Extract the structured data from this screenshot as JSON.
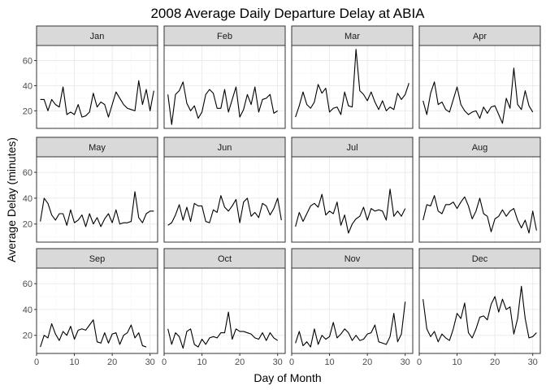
{
  "chart_data": {
    "type": "line",
    "title": "2008 Average Daily Departure Delay at ABIA",
    "xlabel": "Day of Month",
    "ylabel": "Average Delay (minutes)",
    "xlim": [
      0,
      32
    ],
    "ylim": [
      6,
      72
    ],
    "xticks": [
      0,
      10,
      20,
      30
    ],
    "yticks": [
      20,
      40,
      60
    ],
    "grid": true,
    "line_color": "#000000",
    "panel_border_color": "#333333",
    "strip_fill": "#d9d9d9",
    "grid_major_color": "#ebebeb",
    "grid_minor_color": "#f5f5f5",
    "facets": [
      {
        "label": "Jan",
        "y": [
          29,
          29,
          20,
          29,
          25,
          23,
          39,
          17,
          19,
          17,
          25,
          15,
          16,
          19,
          34,
          23,
          27,
          25,
          15,
          25,
          35,
          30,
          25,
          22,
          21,
          20,
          44,
          25,
          37,
          20,
          36
        ]
      },
      {
        "label": "Feb",
        "y": [
          33,
          9,
          33,
          36,
          43,
          26,
          20,
          24,
          14,
          19,
          33,
          37,
          34,
          22,
          22,
          37,
          19,
          29,
          39,
          15,
          21,
          33,
          25,
          39,
          19,
          29,
          30,
          33,
          18,
          20
        ]
      },
      {
        "label": "Mar",
        "y": [
          15,
          24,
          35,
          25,
          22,
          27,
          41,
          34,
          38,
          19,
          22,
          23,
          17,
          35,
          24,
          23,
          69,
          36,
          33,
          28,
          35,
          27,
          21,
          28,
          20,
          23,
          21,
          34,
          29,
          33,
          42
        ]
      },
      {
        "label": "Apr",
        "y": [
          28,
          17,
          34,
          43,
          25,
          27,
          21,
          19,
          29,
          39,
          25,
          20,
          17,
          19,
          20,
          14,
          23,
          18,
          23,
          24,
          17,
          10,
          30,
          22,
          54,
          25,
          21,
          36,
          24,
          19
        ]
      },
      {
        "label": "May",
        "y": [
          22,
          40,
          36,
          27,
          23,
          28,
          28,
          19,
          31,
          21,
          23,
          27,
          18,
          28,
          20,
          25,
          18,
          24,
          28,
          21,
          31,
          20,
          21,
          21,
          22,
          45,
          25,
          21,
          28,
          30,
          30
        ]
      },
      {
        "label": "Jun",
        "y": [
          19,
          21,
          27,
          35,
          23,
          33,
          22,
          36,
          34,
          34,
          22,
          21,
          31,
          29,
          42,
          33,
          30,
          34,
          39,
          21,
          37,
          40,
          26,
          29,
          25,
          36,
          34,
          27,
          32,
          40,
          23
        ]
      },
      {
        "label": "Jul",
        "y": [
          18,
          29,
          22,
          28,
          34,
          36,
          33,
          43,
          27,
          30,
          28,
          37,
          19,
          27,
          13,
          20,
          24,
          26,
          33,
          23,
          32,
          30,
          31,
          30,
          23,
          47,
          26,
          30,
          26,
          32
        ]
      },
      {
        "label": "Aug",
        "y": [
          23,
          35,
          34,
          42,
          30,
          28,
          35,
          35,
          37,
          32,
          37,
          41,
          34,
          24,
          30,
          40,
          28,
          26,
          14,
          24,
          26,
          31,
          26,
          30,
          32,
          23,
          17,
          23,
          13,
          30,
          15
        ]
      },
      {
        "label": "Sep",
        "y": [
          11,
          20,
          18,
          29,
          21,
          16,
          23,
          20,
          27,
          17,
          24,
          25,
          24,
          28,
          32,
          15,
          14,
          22,
          14,
          21,
          22,
          13,
          20,
          22,
          28,
          18,
          22,
          12,
          11
        ]
      },
      {
        "label": "Oct",
        "y": [
          25,
          13,
          22,
          19,
          10,
          23,
          25,
          13,
          11,
          17,
          13,
          18,
          19,
          18,
          22,
          22,
          38,
          17,
          25,
          23,
          23,
          22,
          21,
          18,
          17,
          22,
          16,
          22,
          18,
          16
        ]
      },
      {
        "label": "Nov",
        "y": [
          14,
          23,
          12,
          15,
          11,
          25,
          13,
          20,
          17,
          19,
          30,
          18,
          21,
          25,
          22,
          16,
          20,
          16,
          17,
          21,
          22,
          28,
          15,
          14,
          13,
          19,
          37,
          15,
          21,
          46
        ]
      },
      {
        "label": "Dec",
        "y": [
          48,
          25,
          19,
          23,
          15,
          21,
          18,
          16,
          25,
          37,
          33,
          45,
          22,
          18,
          25,
          34,
          35,
          32,
          44,
          50,
          38,
          48,
          40,
          42,
          21,
          33,
          58,
          33,
          18,
          19,
          22
        ]
      }
    ]
  }
}
